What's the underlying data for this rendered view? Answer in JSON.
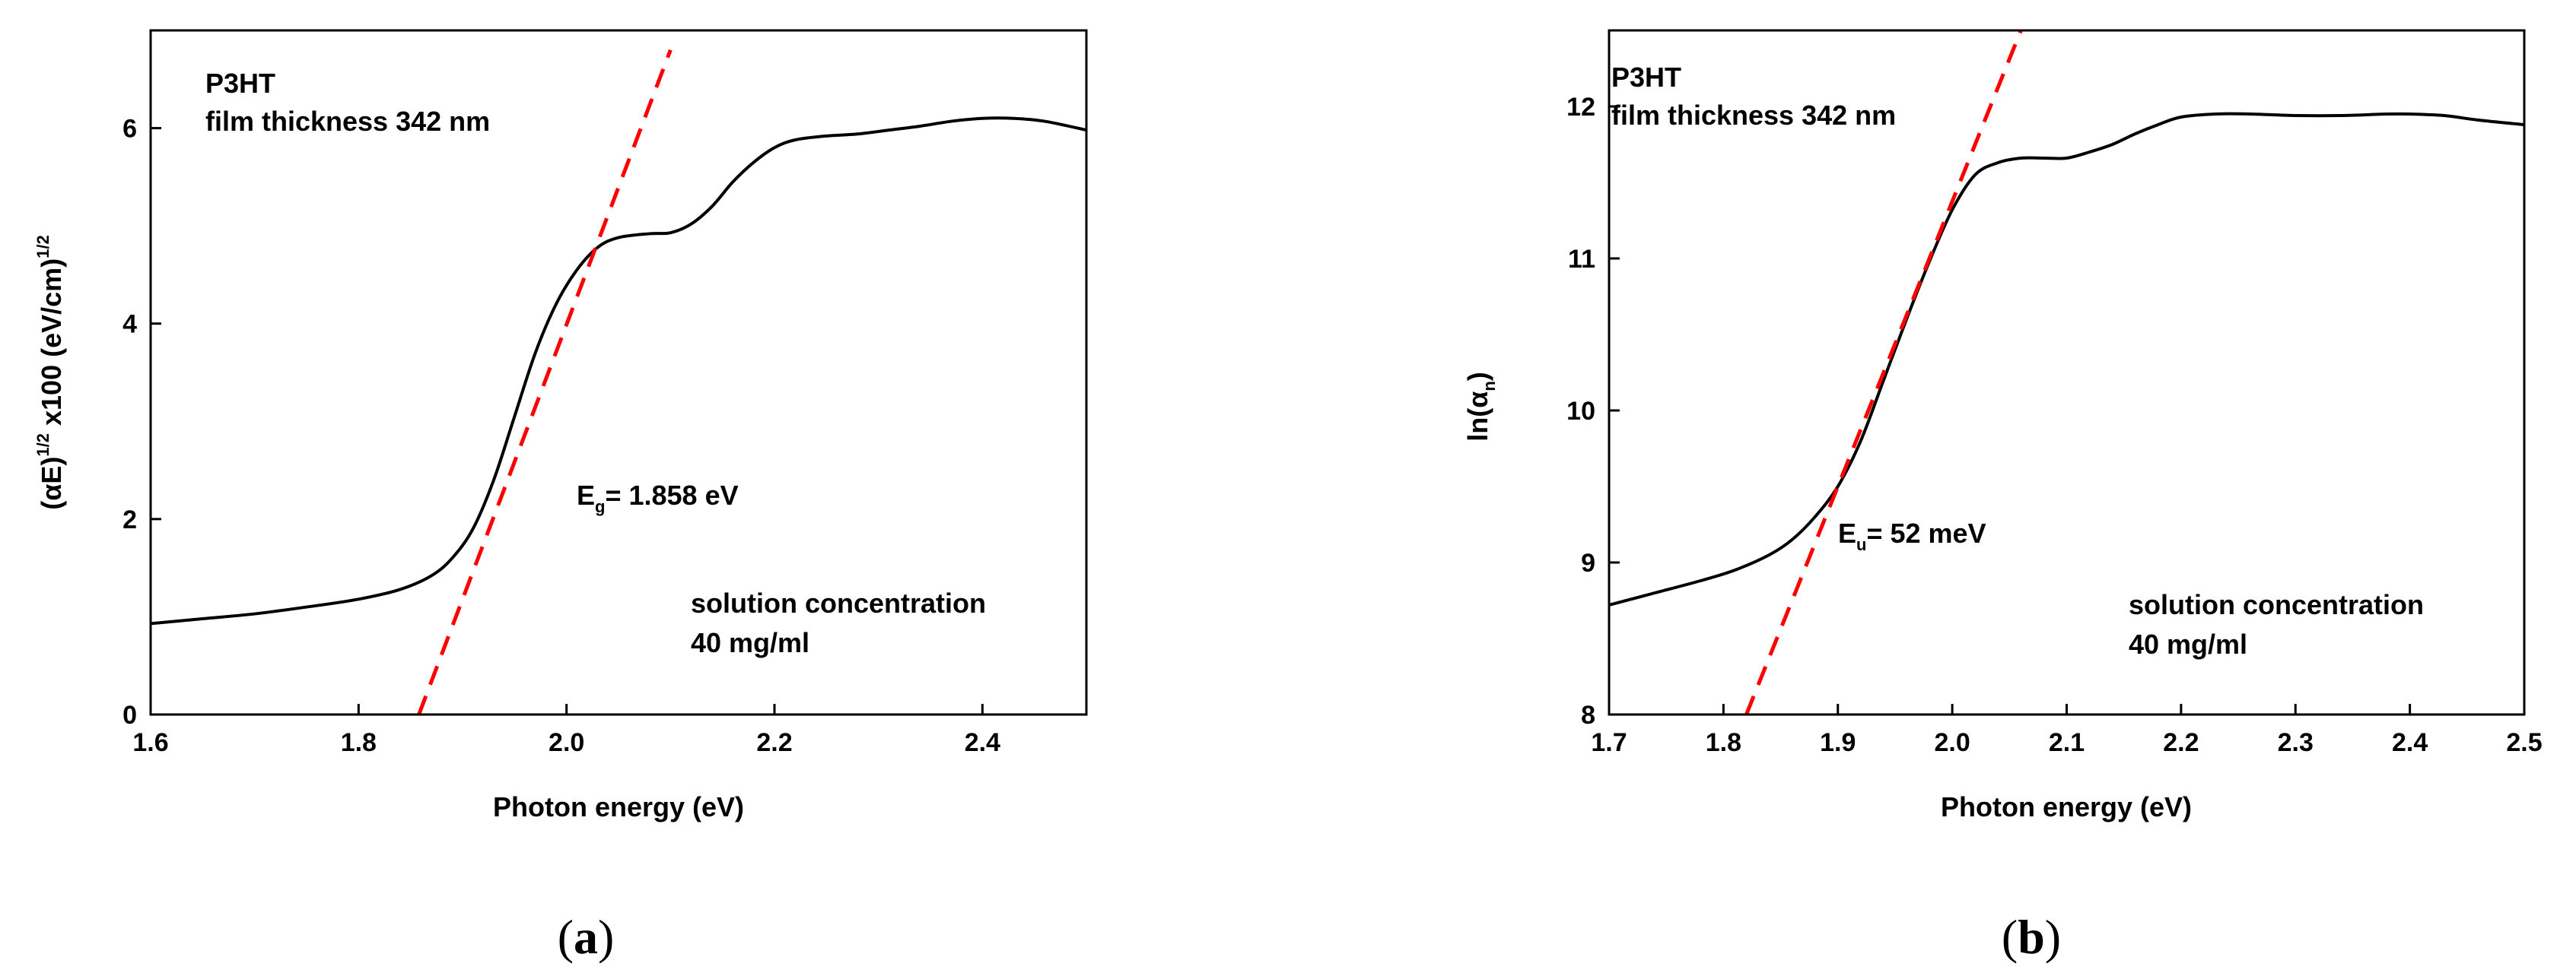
{
  "chart_data": [
    {
      "id": "a",
      "type": "line",
      "panel_label": "a",
      "xlabel": "Photon energy (eV)",
      "ylabel": {
        "prefix": "(",
        "alpha": "α",
        "mid": "E)",
        "sup1": "1/2",
        "rest": " x100 (eV/cm)",
        "sup2": "1/2"
      },
      "xlim": [
        1.6,
        2.5
      ],
      "ylim": [
        0,
        7
      ],
      "xticks": [
        1.6,
        1.8,
        2.0,
        2.2,
        2.4
      ],
      "xtick_labels": [
        "1.6",
        "1.8",
        "2.0",
        "2.2",
        "2.4"
      ],
      "yticks": [
        0,
        2,
        4,
        6
      ],
      "ytick_labels": [
        "0",
        "2",
        "4",
        "6"
      ],
      "grid": false,
      "annotations": {
        "material": "P3HT",
        "thickness": "film thickness 342 nm",
        "energy": {
          "symbol": "E",
          "sub": "g",
          "text": "= 1.858 eV"
        },
        "concentration_line1": "solution concentration",
        "concentration_line2": "40 mg/ml"
      },
      "series": [
        {
          "style": "solid",
          "color": "#000000",
          "x": [
            1.6,
            1.65,
            1.7,
            1.75,
            1.8,
            1.84,
            1.87,
            1.89,
            1.91,
            1.93,
            1.95,
            1.97,
            1.99,
            2.01,
            2.03,
            2.05,
            2.08,
            2.1,
            2.12,
            2.14,
            2.16,
            2.18,
            2.2,
            2.22,
            2.25,
            2.28,
            2.31,
            2.34,
            2.37,
            2.4,
            2.43,
            2.46,
            2.5
          ],
          "y": [
            0.93,
            0.98,
            1.03,
            1.1,
            1.18,
            1.28,
            1.42,
            1.6,
            1.9,
            2.4,
            3.05,
            3.7,
            4.2,
            4.55,
            4.78,
            4.88,
            4.92,
            4.93,
            5.02,
            5.2,
            5.45,
            5.65,
            5.8,
            5.88,
            5.92,
            5.94,
            5.98,
            6.02,
            6.07,
            6.1,
            6.1,
            6.07,
            5.98
          ]
        },
        {
          "style": "dashed",
          "color": "#ff0000",
          "x": [
            1.858,
            2.1
          ],
          "y": [
            0.0,
            6.8
          ]
        }
      ]
    },
    {
      "id": "b",
      "type": "line",
      "panel_label": "b",
      "xlabel": "Photon energy (eV)",
      "ylabel": {
        "prefix": "ln(",
        "alpha": "α",
        "sub": "n",
        "suffix": ")"
      },
      "xlim": [
        1.7,
        2.5
      ],
      "ylim": [
        8,
        12.5
      ],
      "xticks": [
        1.7,
        1.8,
        1.9,
        2.0,
        2.1,
        2.2,
        2.3,
        2.4,
        2.5
      ],
      "xtick_labels": [
        "1.7",
        "1.8",
        "1.9",
        "2.0",
        "2.1",
        "2.2",
        "2.3",
        "2.4",
        "2.5"
      ],
      "yticks": [
        8,
        9,
        10,
        11,
        12
      ],
      "ytick_labels": [
        "8",
        "9",
        "10",
        "11",
        "12"
      ],
      "grid": false,
      "annotations": {
        "material": "P3HT",
        "thickness": "film thickness 342 nm",
        "energy": {
          "symbol": "E",
          "sub": "u",
          "text": "= 52 meV"
        },
        "concentration_line1": "solution concentration",
        "concentration_line2": "40 mg/ml"
      },
      "series": [
        {
          "style": "solid",
          "color": "#000000",
          "x": [
            1.7,
            1.74,
            1.78,
            1.81,
            1.84,
            1.86,
            1.88,
            1.9,
            1.92,
            1.94,
            1.96,
            1.98,
            2.0,
            2.02,
            2.04,
            2.06,
            2.08,
            2.1,
            2.12,
            2.14,
            2.16,
            2.18,
            2.2,
            2.23,
            2.26,
            2.3,
            2.34,
            2.38,
            2.4,
            2.43,
            2.46,
            2.5
          ],
          "y": [
            8.72,
            8.8,
            8.88,
            8.95,
            9.05,
            9.15,
            9.3,
            9.5,
            9.8,
            10.2,
            10.6,
            10.98,
            11.32,
            11.55,
            11.63,
            11.66,
            11.66,
            11.66,
            11.7,
            11.75,
            11.82,
            11.88,
            11.93,
            11.95,
            11.95,
            11.94,
            11.94,
            11.95,
            11.95,
            11.94,
            11.91,
            11.88
          ]
        },
        {
          "style": "dashed",
          "color": "#ff0000",
          "x": [
            1.82,
            2.06
          ],
          "y": [
            8.0,
            12.5
          ]
        }
      ]
    }
  ]
}
